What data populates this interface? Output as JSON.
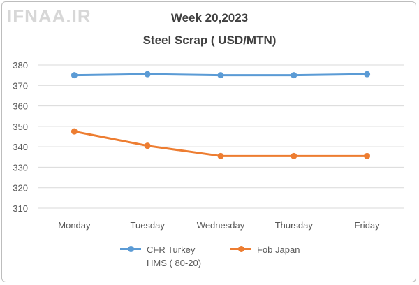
{
  "watermark": "IFNAA.IR",
  "chart_data": {
    "type": "line",
    "title": "Week 20,2023",
    "subtitle": "Steel Scrap ( USD/MTN)",
    "xlabel": "",
    "ylabel": "",
    "categories": [
      "Monday",
      "Tuesday",
      "Wednesday",
      "Thursday",
      "Friday"
    ],
    "ylim": [
      310,
      380
    ],
    "yticks": [
      310,
      320,
      330,
      340,
      350,
      360,
      370,
      380
    ],
    "grid": true,
    "legend_position": "bottom",
    "series": [
      {
        "name": "CFR Turkey HMS ( 80-20)",
        "legend_lines": [
          "CFR Turkey",
          "HMS ( 80-20)"
        ],
        "color": "#5b9bd5",
        "values": [
          375,
          375.5,
          375,
          375,
          375.5
        ]
      },
      {
        "name": "Fob Japan",
        "legend_lines": [
          "Fob Japan"
        ],
        "color": "#ed7d31",
        "values": [
          347.5,
          340.5,
          335.5,
          335.5,
          335.5
        ]
      }
    ]
  }
}
